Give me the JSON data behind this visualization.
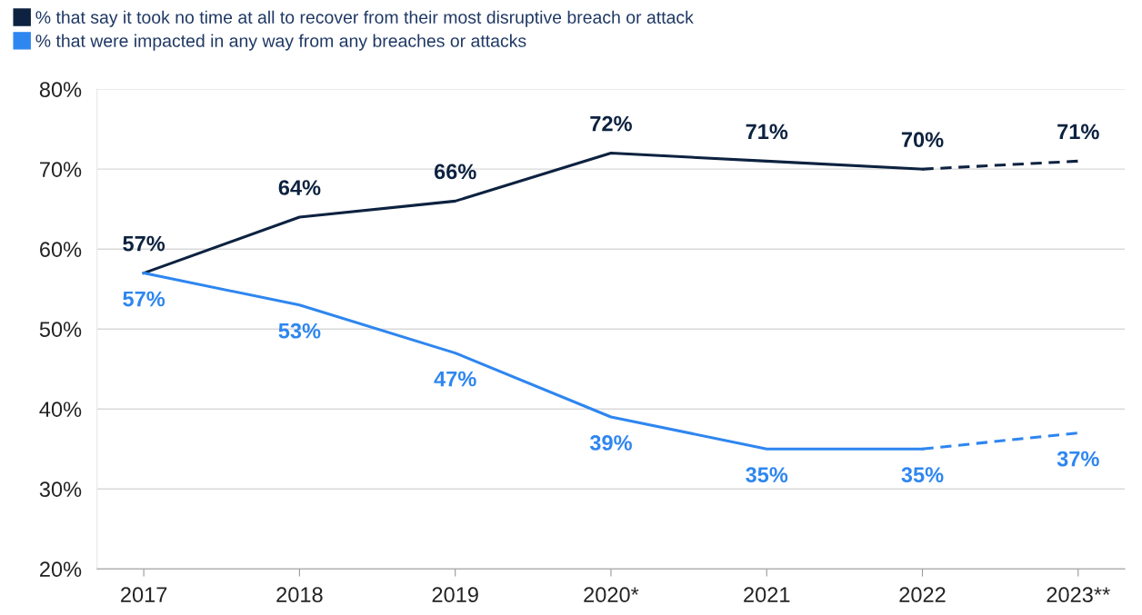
{
  "chart_data": {
    "type": "line",
    "categories": [
      "2017",
      "2018",
      "2019",
      "2020*",
      "2021",
      "2022",
      "2023**"
    ],
    "series": [
      {
        "name": "% that say it took no time at all to recover from their most disruptive breach or attack",
        "color": "#0d2240",
        "values": [
          57,
          64,
          66,
          72,
          71,
          70,
          null
        ],
        "value_labels": [
          "57%",
          "64%",
          "66%",
          "72%",
          "71%",
          "70%",
          null
        ],
        "line_style": "solid"
      },
      {
        "name": "% that were impacted in any way from any breaches or attacks",
        "color": "#2e86f0",
        "values": [
          57,
          53,
          47,
          39,
          35,
          35,
          null
        ],
        "value_labels": [
          "57%",
          "53%",
          "47%",
          "39%",
          "35%",
          "35%",
          null
        ],
        "line_style": "solid"
      },
      {
        "color": "#0d2240",
        "values": [
          null,
          null,
          null,
          null,
          null,
          70,
          71
        ],
        "value_labels": [
          null,
          null,
          null,
          null,
          null,
          null,
          "71%"
        ],
        "line_style": "dashed"
      },
      {
        "color": "#2e86f0",
        "values": [
          null,
          null,
          null,
          null,
          null,
          35,
          37
        ],
        "value_labels": [
          null,
          null,
          null,
          null,
          null,
          null,
          "37%"
        ],
        "line_style": "dashed"
      }
    ],
    "ylim": [
      20,
      80
    ],
    "yticks": [
      {
        "value": 20,
        "label": "20%"
      },
      {
        "value": 30,
        "label": "30%"
      },
      {
        "value": 40,
        "label": "40%"
      },
      {
        "value": 50,
        "label": "50%"
      },
      {
        "value": 60,
        "label": "60%"
      },
      {
        "value": 70,
        "label": "70%"
      },
      {
        "value": 80,
        "label": "80%"
      }
    ],
    "grid": "y",
    "legend": "top left",
    "marker": "none"
  }
}
